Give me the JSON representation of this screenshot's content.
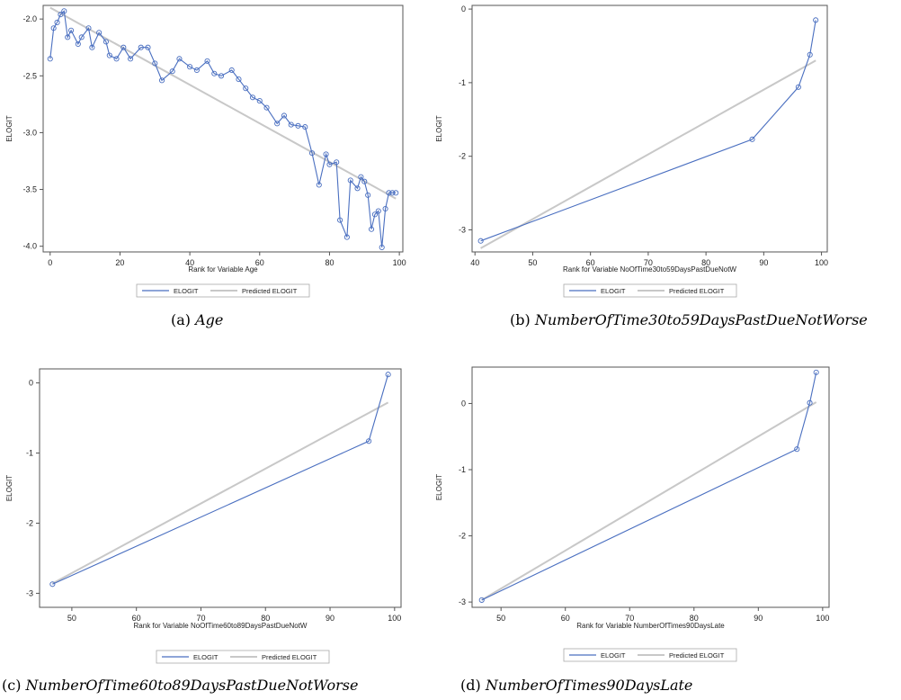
{
  "colors": {
    "elogit": "#4a6fc0",
    "predicted": "#c8c8c8",
    "axis": "#555555"
  },
  "captions": [
    {
      "label": "(a)",
      "var": "Age"
    },
    {
      "label": "(b)",
      "var": "NumberOfTime30to59DaysPastDueNotWorse"
    },
    {
      "label": "(c)",
      "var": "NumberOfTime60to89DaysPastDueNotWorse"
    },
    {
      "label": "(d)",
      "var": "NumberOfTimes90DaysLate"
    }
  ],
  "chart_data": [
    {
      "type": "line",
      "xlabel": "Rank for Variable Age",
      "ylabel": "ELOGIT",
      "xlim": [
        -2,
        101
      ],
      "ylim": [
        -4.05,
        -1.88
      ],
      "xticks": [
        0,
        20,
        40,
        60,
        80,
        100
      ],
      "yticks": [
        -2.0,
        -2.5,
        -3.0,
        -3.5,
        -4.0
      ],
      "ytick_labels": [
        "-2.0",
        "-2.5",
        "-3.0",
        "-3.5",
        "-4.0"
      ],
      "legend": [
        "ELOGIT",
        "Predicted ELOGIT"
      ],
      "legend_position": "bottom",
      "series": [
        {
          "name": "ELOGIT",
          "markers": true,
          "x": [
            0,
            1,
            2,
            3,
            4,
            5,
            6,
            8,
            9,
            11,
            12,
            14,
            16,
            17,
            19,
            21,
            23,
            26,
            28,
            30,
            32,
            35,
            37,
            40,
            42,
            45,
            47,
            49,
            52,
            54,
            56,
            58,
            60,
            62,
            65,
            67,
            69,
            71,
            73,
            75,
            77,
            79,
            80,
            82,
            83,
            85,
            86,
            88,
            89,
            90,
            91,
            92,
            93,
            94,
            95,
            96,
            97,
            98,
            99
          ],
          "y": [
            -2.35,
            -2.08,
            -2.03,
            -1.96,
            -1.93,
            -2.16,
            -2.1,
            -2.22,
            -2.16,
            -2.08,
            -2.25,
            -2.12,
            -2.2,
            -2.32,
            -2.35,
            -2.25,
            -2.35,
            -2.25,
            -2.25,
            -2.39,
            -2.54,
            -2.46,
            -2.35,
            -2.42,
            -2.45,
            -2.37,
            -2.48,
            -2.5,
            -2.45,
            -2.53,
            -2.61,
            -2.69,
            -2.72,
            -2.78,
            -2.92,
            -2.85,
            -2.93,
            -2.94,
            -2.95,
            -3.18,
            -3.46,
            -3.19,
            -3.28,
            -3.26,
            -3.77,
            -3.92,
            -3.42,
            -3.49,
            -3.39,
            -3.43,
            -3.55,
            -3.85,
            -3.72,
            -3.69,
            -4.01,
            -3.67,
            -3.53,
            -3.53,
            -3.53
          ]
        },
        {
          "name": "Predicted ELOGIT",
          "markers": false,
          "x": [
            0,
            99
          ],
          "y": [
            -1.9,
            -3.58
          ]
        }
      ]
    },
    {
      "type": "line",
      "xlabel": "Rank for Variable NoOfTime30to59DaysPastDueNotW",
      "ylabel": "ELOGIT",
      "xlim": [
        39.5,
        101
      ],
      "ylim": [
        -3.3,
        0.05
      ],
      "xticks": [
        40,
        50,
        60,
        70,
        80,
        90,
        100
      ],
      "yticks": [
        0,
        -1,
        -2,
        -3
      ],
      "ytick_labels": [
        "0",
        "-1",
        "-2",
        "-3"
      ],
      "legend": [
        "ELOGIT",
        "Predicted ELOGIT"
      ],
      "legend_position": "bottom",
      "series": [
        {
          "name": "ELOGIT",
          "markers": true,
          "x": [
            41,
            88,
            96,
            98,
            99
          ],
          "y": [
            -3.15,
            -1.77,
            -1.06,
            -0.62,
            -0.15
          ]
        },
        {
          "name": "Predicted ELOGIT",
          "markers": false,
          "x": [
            41,
            99
          ],
          "y": [
            -3.25,
            -0.7
          ]
        }
      ]
    },
    {
      "type": "line",
      "xlabel": "Rank for Variable NoOfTime60to89DaysPastDueNotW",
      "ylabel": "ELOGIT",
      "xlim": [
        45,
        101
      ],
      "ylim": [
        -3.2,
        0.2
      ],
      "xticks": [
        50,
        60,
        70,
        80,
        90,
        100
      ],
      "yticks": [
        0,
        -1,
        -2,
        -3
      ],
      "ytick_labels": [
        "0",
        "-1",
        "-2",
        "-3"
      ],
      "legend": [
        "ELOGIT",
        "Predicted ELOGIT"
      ],
      "legend_position": "bottom",
      "series": [
        {
          "name": "ELOGIT",
          "markers": true,
          "x": [
            47,
            96,
            99
          ],
          "y": [
            -2.87,
            -0.83,
            0.12
          ]
        },
        {
          "name": "Predicted ELOGIT",
          "markers": false,
          "x": [
            47,
            99
          ],
          "y": [
            -2.86,
            -0.28
          ]
        }
      ]
    },
    {
      "type": "line",
      "xlabel": "Rank for Variable NumberOfTimes90DaysLate",
      "ylabel": "ELOGIT",
      "xlim": [
        45.5,
        101
      ],
      "ylim": [
        -3.08,
        0.55
      ],
      "xticks": [
        50,
        60,
        70,
        80,
        90,
        100
      ],
      "yticks": [
        0,
        -1,
        -2,
        -3
      ],
      "ytick_labels": [
        "0",
        "-1",
        "-2",
        "-3"
      ],
      "legend": [
        "ELOGIT",
        "Predicted ELOGIT"
      ],
      "legend_position": "bottom",
      "series": [
        {
          "name": "ELOGIT",
          "markers": true,
          "x": [
            47,
            96,
            98,
            99
          ],
          "y": [
            -2.97,
            -0.69,
            0.01,
            0.47
          ]
        },
        {
          "name": "Predicted ELOGIT",
          "markers": false,
          "x": [
            47,
            99
          ],
          "y": [
            -2.97,
            0.02
          ]
        }
      ]
    }
  ]
}
